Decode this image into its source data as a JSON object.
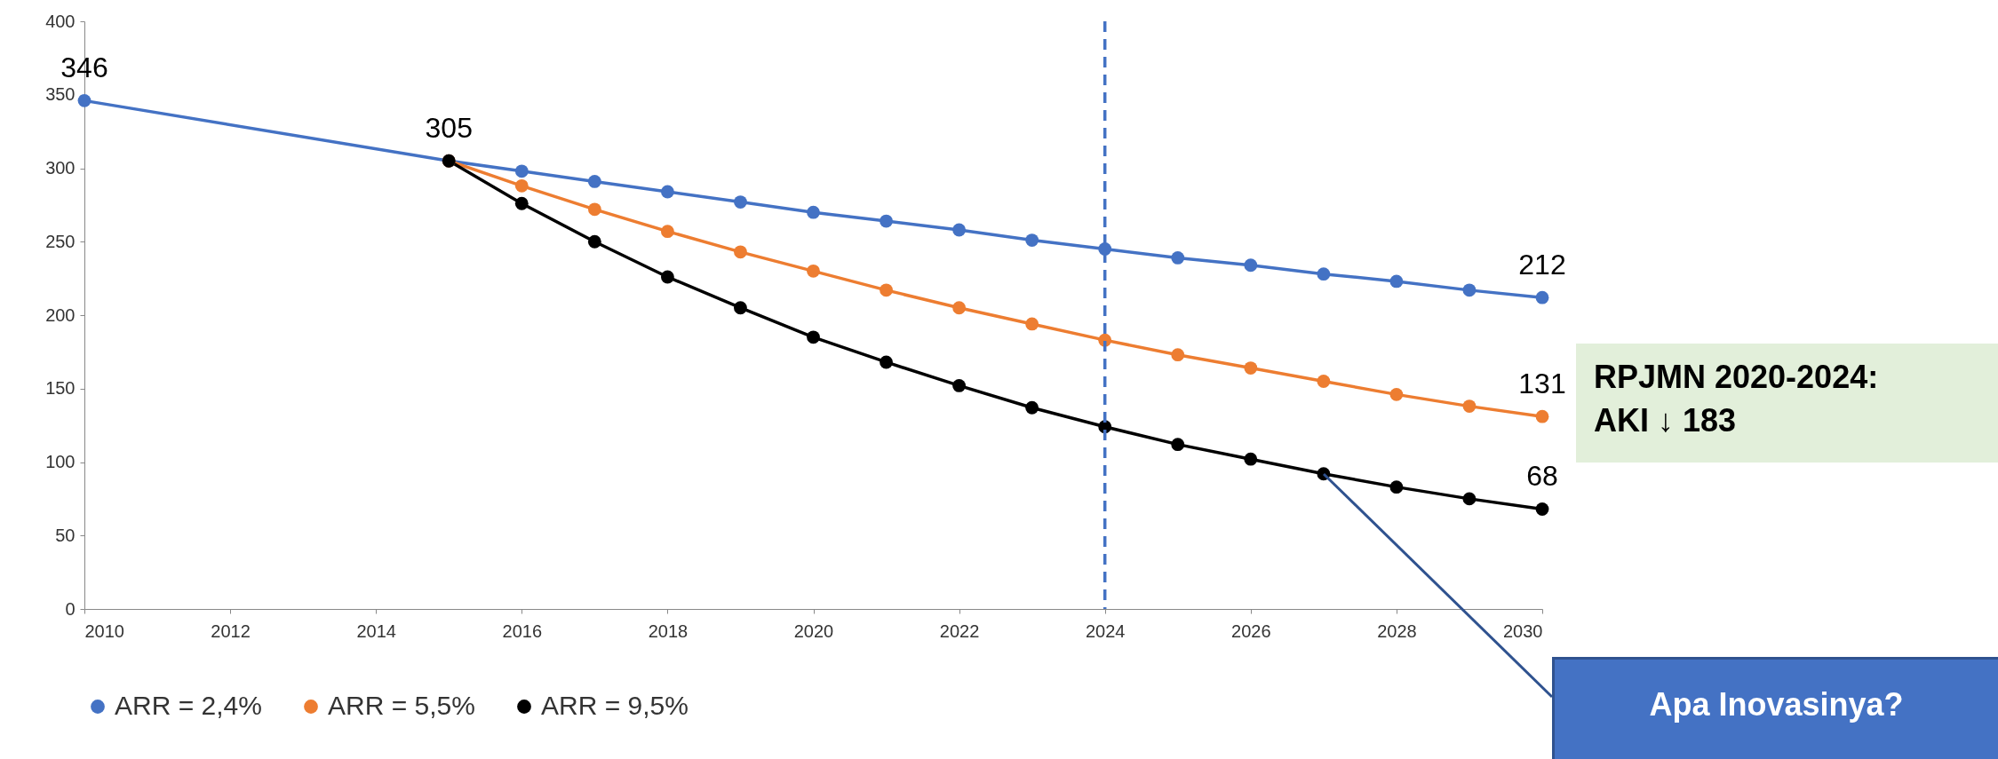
{
  "chart_data": {
    "type": "line",
    "x": [
      2015,
      2016,
      2017,
      2018,
      2019,
      2020,
      2021,
      2022,
      2023,
      2024,
      2025,
      2026,
      2027,
      2028,
      2029,
      2030
    ],
    "series": [
      {
        "name": "ARR = 2,4%",
        "color": "#4472c4",
        "x": [
          2010,
          2015,
          2016,
          2017,
          2018,
          2019,
          2020,
          2021,
          2022,
          2023,
          2024,
          2025,
          2026,
          2027,
          2028,
          2029,
          2030
        ],
        "values": [
          346,
          305,
          298,
          291,
          284,
          277,
          270,
          264,
          258,
          251,
          245,
          239,
          234,
          228,
          223,
          217,
          212
        ],
        "value_labels": [
          "346",
          "305",
          null,
          null,
          null,
          null,
          null,
          null,
          null,
          null,
          null,
          null,
          null,
          null,
          null,
          null,
          "212"
        ]
      },
      {
        "name": "ARR = 5,5%",
        "color": "#ed7d31",
        "values": [
          305,
          288,
          272,
          257,
          243,
          230,
          217,
          205,
          194,
          183,
          173,
          164,
          155,
          146,
          138,
          131
        ],
        "value_labels": [
          null,
          null,
          null,
          null,
          null,
          null,
          null,
          null,
          null,
          null,
          null,
          null,
          null,
          null,
          null,
          "131"
        ]
      },
      {
        "name": "ARR = 9,5%",
        "color": "#000000",
        "values": [
          305,
          276,
          250,
          226,
          205,
          185,
          168,
          152,
          137,
          124,
          112,
          102,
          92,
          83,
          75,
          68
        ],
        "value_labels": [
          null,
          null,
          null,
          null,
          null,
          null,
          null,
          null,
          null,
          null,
          null,
          null,
          null,
          null,
          null,
          "68"
        ]
      }
    ],
    "xlim": [
      2010,
      2030
    ],
    "xticks": [
      2010,
      2012,
      2014,
      2016,
      2018,
      2020,
      2022,
      2024,
      2026,
      2028,
      2030
    ],
    "ylim": [
      0,
      400
    ],
    "yticks": [
      0,
      50,
      100,
      150,
      200,
      250,
      300,
      350,
      400
    ],
    "grid": false,
    "legend": "bottom",
    "marker": "circle",
    "line_style": "solid",
    "ref_lines": [
      {
        "axis": "x",
        "value": 2024,
        "color": "#4472c4",
        "line_style": "dashed"
      }
    ],
    "annotations": [
      "RPJMN 2020-2024:\nAKI ↓ 183",
      "Apa Inovasinya?"
    ]
  }
}
